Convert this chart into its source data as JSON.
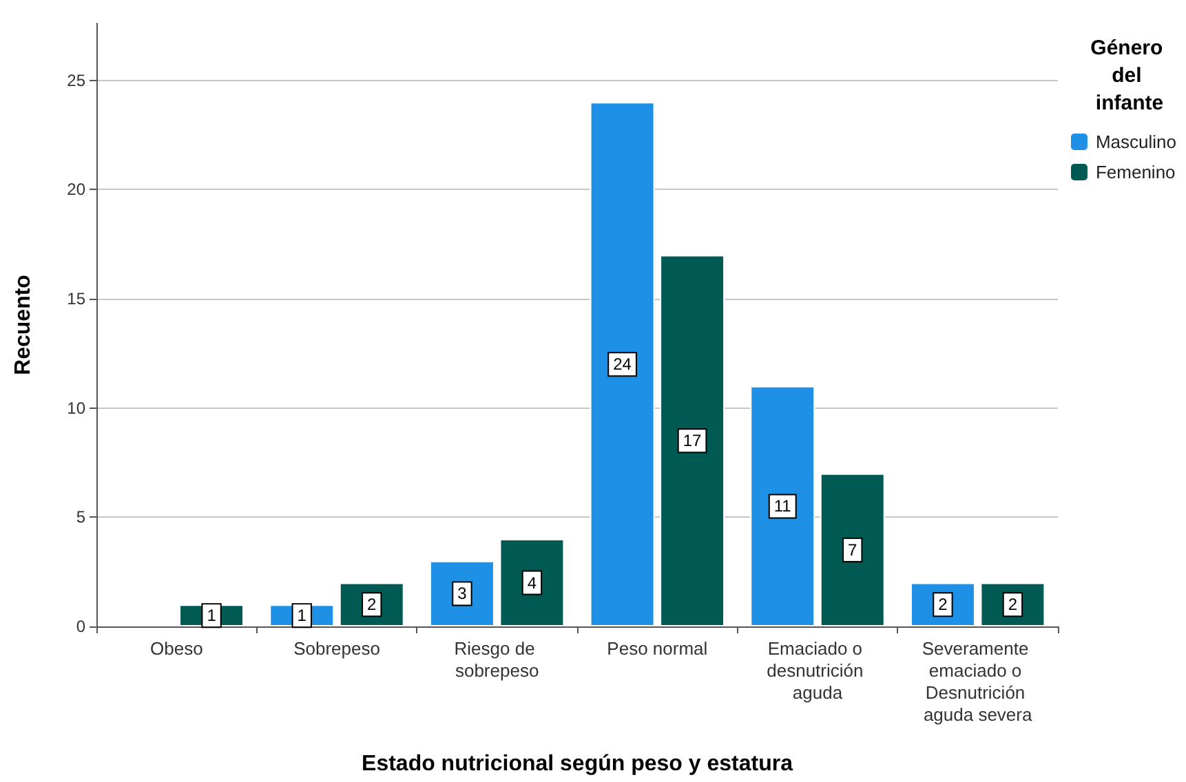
{
  "chart_data": {
    "type": "bar",
    "xlabel": "Estado nutricional según peso y estatura",
    "ylabel": "Recuento",
    "legend_title": "Género del infante",
    "categories": [
      "Obeso",
      "Sobrepeso",
      "Riesgo de sobrepeso",
      "Peso normal",
      "Emaciado o desnutrición aguda",
      "Severamente emaciado o Desnutrición aguda severa"
    ],
    "series": [
      {
        "name": "Masculino",
        "color": "#1e90e6",
        "values": [
          null,
          1,
          3,
          24,
          11,
          2
        ]
      },
      {
        "name": "Femenino",
        "color": "#005a54",
        "values": [
          1,
          2,
          4,
          17,
          7,
          2
        ]
      }
    ],
    "ylim": [
      0,
      27.6
    ],
    "yticks": [
      0,
      5,
      10,
      15,
      20,
      25
    ],
    "grid": "y",
    "legend": "top right",
    "data_labels": true
  }
}
